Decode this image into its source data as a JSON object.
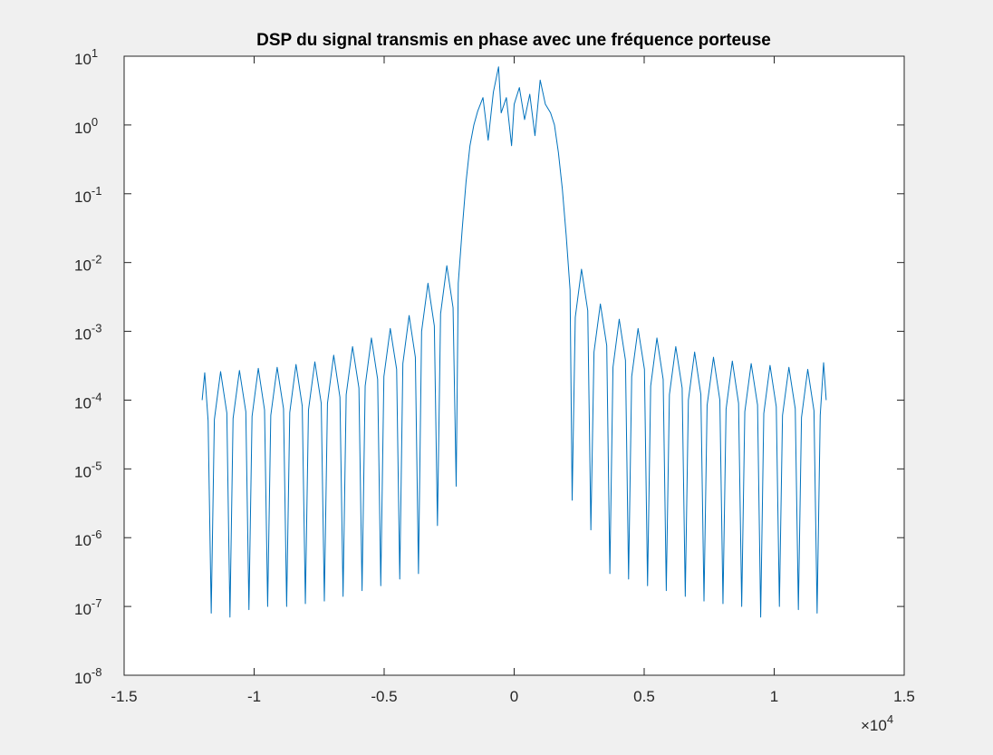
{
  "chart_data": {
    "type": "line",
    "title": "DSP du signal transmis en phase avec une fréquence porteuse",
    "color": "#0072bd",
    "log_y": true,
    "box": true,
    "xlim": [
      -1.5,
      1.5
    ],
    "xticks": [
      -1.5,
      -1,
      -0.5,
      0,
      0.5,
      1,
      1.5
    ],
    "x_exponent_label": "×10^4",
    "ylim": [
      1e-08,
      10
    ],
    "yticks": [
      {
        "value": 1e-08,
        "label": "10^-8"
      },
      {
        "value": 1e-07,
        "label": "10^-7"
      },
      {
        "value": 1e-06,
        "label": "10^-6"
      },
      {
        "value": 1e-05,
        "label": "10^-5"
      },
      {
        "value": 0.0001,
        "label": "10^-4"
      },
      {
        "value": 0.001,
        "label": "10^-3"
      },
      {
        "value": 0.01,
        "label": "10^-2"
      },
      {
        "value": 0.1,
        "label": "10^-1"
      },
      {
        "value": 1,
        "label": "10^0"
      },
      {
        "value": 10,
        "label": "10^1"
      }
    ],
    "x": [
      -1.2,
      -1.19,
      -1.177,
      -1.165,
      -1.153,
      -1.129,
      -1.105,
      -1.093,
      -1.081,
      -1.0565,
      -1.032,
      -1.02,
      -1.008,
      -0.984,
      -0.96,
      -0.948,
      -0.936,
      -0.9115,
      -0.887,
      -0.875,
      -0.863,
      -0.839,
      -0.815,
      -0.803,
      -0.791,
      -0.7665,
      -0.742,
      -0.73,
      -0.718,
      -0.694,
      -0.67,
      -0.658,
      -0.646,
      -0.6215,
      -0.597,
      -0.585,
      -0.573,
      -0.549,
      -0.525,
      -0.513,
      -0.501,
      -0.4765,
      -0.452,
      -0.44,
      -0.428,
      -0.404,
      -0.38,
      -0.368,
      -0.356,
      -0.3315,
      -0.307,
      -0.295,
      -0.283,
      -0.259,
      -0.235,
      -0.223,
      -0.215,
      -0.2,
      -0.185,
      -0.17,
      -0.155,
      -0.14,
      -0.12,
      -0.1,
      -0.08,
      -0.06,
      -0.05,
      -0.03,
      -0.01,
      0,
      0.02,
      0.04,
      0.06,
      0.08,
      0.1,
      0.12,
      0.14,
      0.155,
      0.17,
      0.185,
      0.2,
      0.215,
      0.223,
      0.235,
      0.259,
      0.283,
      0.295,
      0.307,
      0.3315,
      0.356,
      0.368,
      0.38,
      0.404,
      0.428,
      0.44,
      0.452,
      0.4765,
      0.501,
      0.513,
      0.525,
      0.549,
      0.573,
      0.585,
      0.597,
      0.6215,
      0.646,
      0.658,
      0.67,
      0.694,
      0.718,
      0.73,
      0.742,
      0.7665,
      0.791,
      0.803,
      0.815,
      0.839,
      0.863,
      0.875,
      0.887,
      0.9115,
      0.936,
      0.948,
      0.96,
      0.984,
      1.008,
      1.02,
      1.032,
      1.0565,
      1.081,
      1.093,
      1.105,
      1.129,
      1.153,
      1.165,
      1.177,
      1.19,
      1.2
    ],
    "values": [
      0.0001,
      0.00025,
      5e-05,
      8e-08,
      5.2e-05,
      0.00026,
      6.5e-05,
      7e-08,
      5.4e-05,
      0.00027,
      6.8e-05,
      9e-08,
      5.8e-05,
      0.00029,
      7.2e-05,
      1e-07,
      6e-05,
      0.0003,
      7.5e-05,
      1e-07,
      6.6e-05,
      0.00033,
      8.2e-05,
      1.1e-07,
      7.2e-05,
      0.00036,
      9e-05,
      1.2e-07,
      9e-05,
      0.00045,
      0.00011,
      1.4e-07,
      0.00012,
      0.0006,
      0.00015,
      1.7e-07,
      0.00016,
      0.0008,
      0.0002,
      2e-07,
      0.00022,
      0.0011,
      0.00028,
      2.5e-07,
      0.00034,
      0.0017,
      0.00042,
      3e-07,
      0.001,
      0.005,
      0.0012,
      1.5e-06,
      0.0018,
      0.009,
      0.0022,
      5.6e-06,
      0.005,
      0.03,
      0.15,
      0.5,
      1,
      1.6,
      2.5,
      0.6,
      3,
      7,
      1.5,
      2.5,
      0.5,
      2,
      3.5,
      1.2,
      2.8,
      0.7,
      4.5,
      2,
      1.5,
      1,
      0.4,
      0.12,
      0.025,
      0.004,
      3.5e-06,
      0.0016,
      0.008,
      0.002,
      1.3e-06,
      0.0005,
      0.0025,
      0.00062,
      3e-07,
      0.0003,
      0.0015,
      0.00038,
      2.5e-07,
      0.00022,
      0.0011,
      0.00028,
      2e-07,
      0.00016,
      0.0008,
      0.0002,
      1.7e-07,
      0.00012,
      0.0006,
      0.00015,
      1.4e-07,
      0.0001,
      0.0005,
      0.00012,
      1.2e-07,
      8.4e-05,
      0.00042,
      0.0001,
      1.1e-07,
      7.4e-05,
      0.00037,
      9e-05,
      1e-07,
      6.8e-05,
      0.00034,
      8.5e-05,
      7e-08,
      6.4e-05,
      0.00032,
      8e-05,
      1e-07,
      6e-05,
      0.0003,
      7.5e-05,
      9e-08,
      5.6e-05,
      0.00028,
      7e-05,
      8e-08,
      6e-05,
      0.00035,
      0.0001
    ]
  }
}
